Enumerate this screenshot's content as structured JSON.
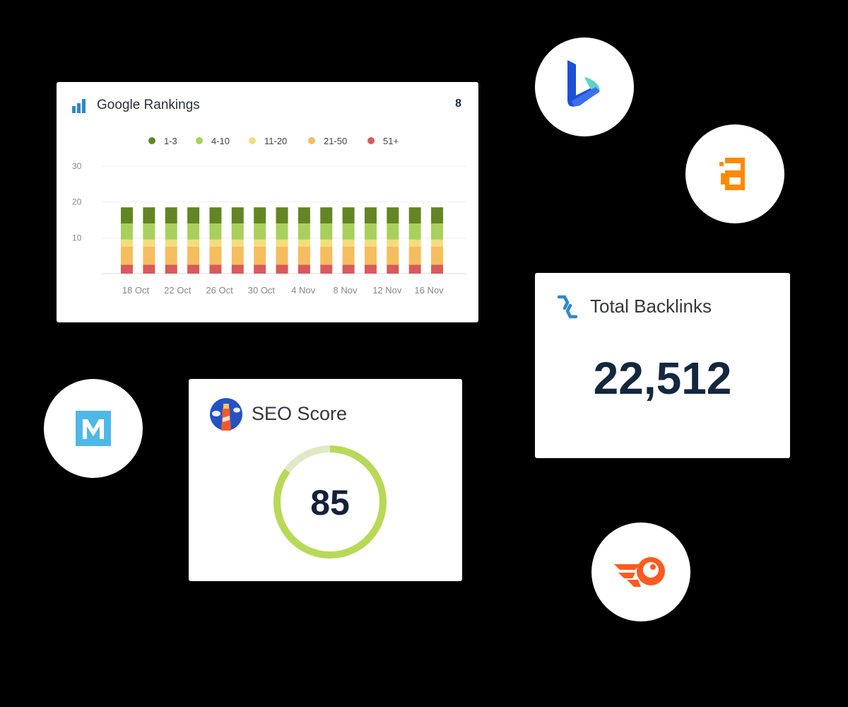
{
  "rankings": {
    "title": "Google Rankings",
    "count": "8",
    "chart_data": {
      "type": "bar",
      "stacked": true,
      "x_tick_labels": [
        "18 Oct",
        "22 Oct",
        "26 Oct",
        "30 Oct",
        "4 Nov",
        "8 Nov",
        "12 Nov",
        "16 Nov"
      ],
      "y_ticks": [
        "10",
        "20",
        "30"
      ],
      "ylim": [
        0,
        30
      ],
      "grid": true,
      "legend_position": "top",
      "series": [
        {
          "name": "51+",
          "color": "#d95a5a",
          "values": [
            2.5,
            2.5,
            2.5,
            2.5,
            2.5,
            2.5,
            2.5,
            2.5,
            2.5,
            2.5,
            2.5,
            2.5,
            2.5,
            2.5,
            2.5
          ]
        },
        {
          "name": "21-50",
          "color": "#f6bd5e",
          "values": [
            5,
            5,
            5,
            5,
            5,
            5,
            5,
            5,
            5,
            5,
            5,
            5,
            5,
            5,
            5
          ]
        },
        {
          "name": "11-20",
          "color": "#f2dd7e",
          "values": [
            2,
            2,
            2,
            2,
            2,
            2,
            2,
            2,
            2,
            2,
            2,
            2,
            2,
            2,
            2
          ]
        },
        {
          "name": "4-10",
          "color": "#a9d05c",
          "values": [
            4.5,
            4.5,
            4.5,
            4.5,
            4.5,
            4.5,
            4.5,
            4.5,
            4.5,
            4.5,
            4.5,
            4.5,
            4.5,
            4.5,
            4.5
          ]
        },
        {
          "name": "1-3",
          "color": "#648524",
          "values": [
            4.5,
            4.5,
            4.5,
            4.5,
            4.5,
            4.5,
            4.5,
            4.5,
            4.5,
            4.5,
            4.5,
            4.5,
            4.5,
            4.5,
            4.5
          ]
        }
      ],
      "legend_order": [
        "1-3",
        "4-10",
        "11-20",
        "21-50",
        "51+"
      ]
    }
  },
  "backlinks": {
    "title": "Total Backlinks",
    "value": "22,512",
    "icon": "link-icon"
  },
  "seo": {
    "title": "SEO Score",
    "value": "85",
    "score_percent": 85,
    "ring_color": "#b8d957",
    "ring_track_color": "#dfe9c8",
    "icon": "lighthouse-icon"
  },
  "integrations": [
    "bing-logo",
    "amazon-logo",
    "moz-logo",
    "semrush-logo"
  ]
}
